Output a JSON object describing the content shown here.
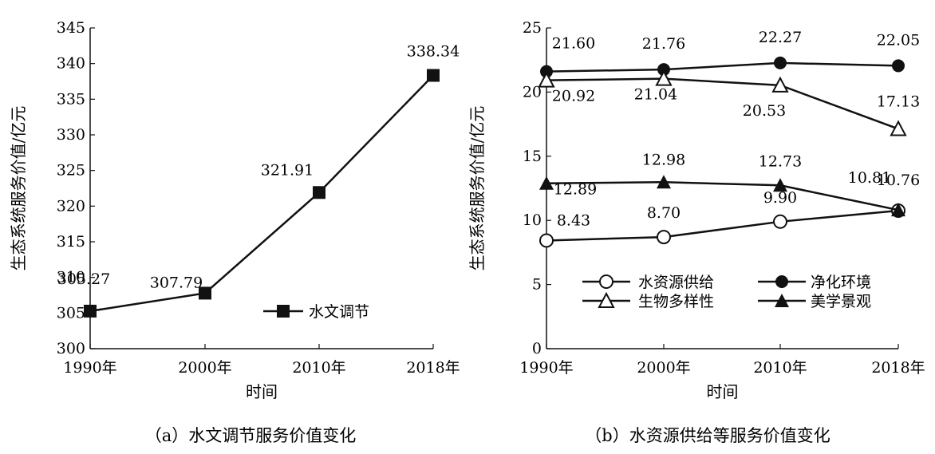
{
  "chart_data": [
    {
      "type": "line",
      "caption": "（a）水文调节服务价值变化",
      "xlabel": "时间",
      "ylabel": "生态系统服务价值/亿元",
      "categories": [
        "1990年",
        "2000年",
        "2010年",
        "2018年"
      ],
      "ylim": [
        300,
        345
      ],
      "yticks": [
        "300",
        "305",
        "310",
        "315",
        "320",
        "325",
        "330",
        "335",
        "340",
        "345"
      ],
      "series": [
        {
          "name": "水文调节",
          "values": [
            305.27,
            307.79,
            321.91,
            338.34
          ],
          "labels": [
            "305.27",
            "307.79",
            "321.91",
            "338.34"
          ],
          "marker": "filled-square"
        }
      ],
      "legend_placement": "bottom-right",
      "grid": false
    },
    {
      "type": "line",
      "caption": "（b）水资源供给等服务价值变化",
      "xlabel": "时间",
      "ylabel": "生态系统服务价值/亿元",
      "categories": [
        "1990年",
        "2000年",
        "2010年",
        "2018年"
      ],
      "ylim": [
        0,
        25
      ],
      "yticks": [
        "0",
        "5",
        "10",
        "15",
        "20",
        "25"
      ],
      "series": [
        {
          "name": "水资源供给",
          "values": [
            8.43,
            8.7,
            9.9,
            10.76
          ],
          "labels": [
            "8.43",
            "8.70",
            "9.90",
            "10.76"
          ],
          "marker": "open-circle"
        },
        {
          "name": "净化环境",
          "values": [
            21.6,
            21.76,
            22.27,
            22.05
          ],
          "labels": [
            "21.60",
            "21.76",
            "22.27",
            "22.05"
          ],
          "marker": "filled-circle"
        },
        {
          "name": "生物多样性",
          "values": [
            20.92,
            21.04,
            20.53,
            17.13
          ],
          "labels": [
            "20.92",
            "21.04",
            "20.53",
            "17.13"
          ],
          "marker": "open-triangle"
        },
        {
          "name": "美学景观",
          "values": [
            12.89,
            12.98,
            12.73,
            10.81
          ],
          "labels": [
            "12.89",
            "12.98",
            "12.73",
            "10.81"
          ],
          "marker": "filled-triangle"
        }
      ],
      "legend_placement": "bottom",
      "grid": false
    }
  ]
}
